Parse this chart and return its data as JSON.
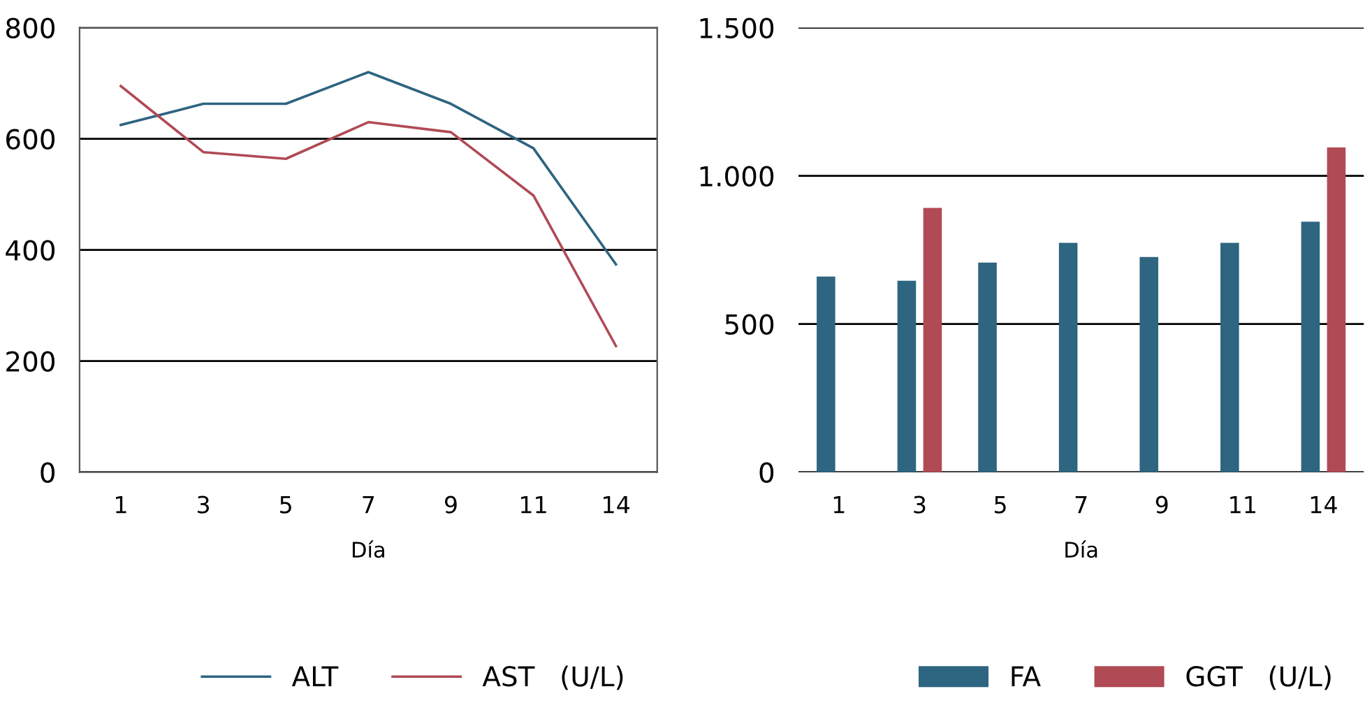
{
  "chart_data": [
    {
      "type": "line",
      "xlabel": "Día",
      "categories": [
        "1",
        "3",
        "5",
        "7",
        "9",
        "11",
        "14"
      ],
      "ylim": [
        0,
        800
      ],
      "yticks": [
        0,
        200,
        400,
        600,
        800
      ],
      "grid": "y",
      "legend": "bottom",
      "legend_title": "(U/L)",
      "series": [
        {
          "name": "ALT",
          "color": "#2e6480",
          "values": [
            625,
            663,
            663,
            720,
            663,
            583,
            374
          ]
        },
        {
          "name": "AST",
          "color": "#b04a55",
          "values": [
            695,
            576,
            564,
            630,
            612,
            498,
            227
          ]
        }
      ]
    },
    {
      "type": "bar",
      "xlabel": "Día",
      "categories": [
        "1",
        "3",
        "5",
        "7",
        "9",
        "11",
        "14"
      ],
      "ylim": [
        0,
        1500
      ],
      "yticks": [
        0,
        500,
        {
          "value": 1000,
          "label": "1.000"
        },
        {
          "value": 1500,
          "label": "1.500"
        }
      ],
      "grid": "y",
      "legend": "bottom",
      "legend_title": "(U/L)",
      "series": [
        {
          "name": "FA",
          "color": "#2e6580",
          "values": [
            660,
            646,
            707,
            774,
            726,
            774,
            845
          ]
        },
        {
          "name": "GGT",
          "color": "#b04a54",
          "values": [
            null,
            892,
            null,
            null,
            null,
            null,
            1096
          ]
        }
      ]
    }
  ]
}
